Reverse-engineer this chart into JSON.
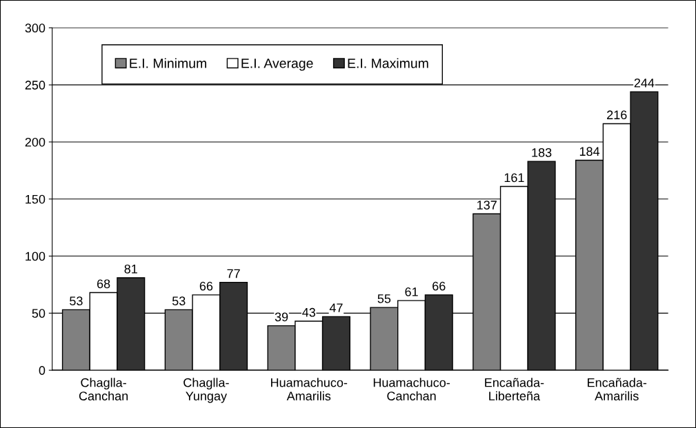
{
  "chart_data": {
    "type": "bar",
    "categories": [
      "Chaglla-\nCanchan",
      "Chaglla-\nYungay",
      "Huamachuco-\nAmarilis",
      "Huamachuco-\nCanchan",
      "Encañada-\nLiberteña",
      "Encañada-\nAmarilis"
    ],
    "series": [
      {
        "name": "E.I. Minimum",
        "color": "#808080",
        "values": [
          53,
          53,
          39,
          55,
          137,
          184
        ]
      },
      {
        "name": "E.I. Average",
        "color": "#ffffff",
        "values": [
          68,
          66,
          43,
          61,
          161,
          216
        ]
      },
      {
        "name": "E.I. Maximum",
        "color": "#333333",
        "values": [
          81,
          77,
          47,
          66,
          183,
          244
        ]
      }
    ],
    "ylim": [
      0,
      300
    ],
    "yticks": [
      0,
      50,
      100,
      150,
      200,
      250,
      300
    ],
    "grid": "y",
    "legend": "top left",
    "data_labels": true
  }
}
